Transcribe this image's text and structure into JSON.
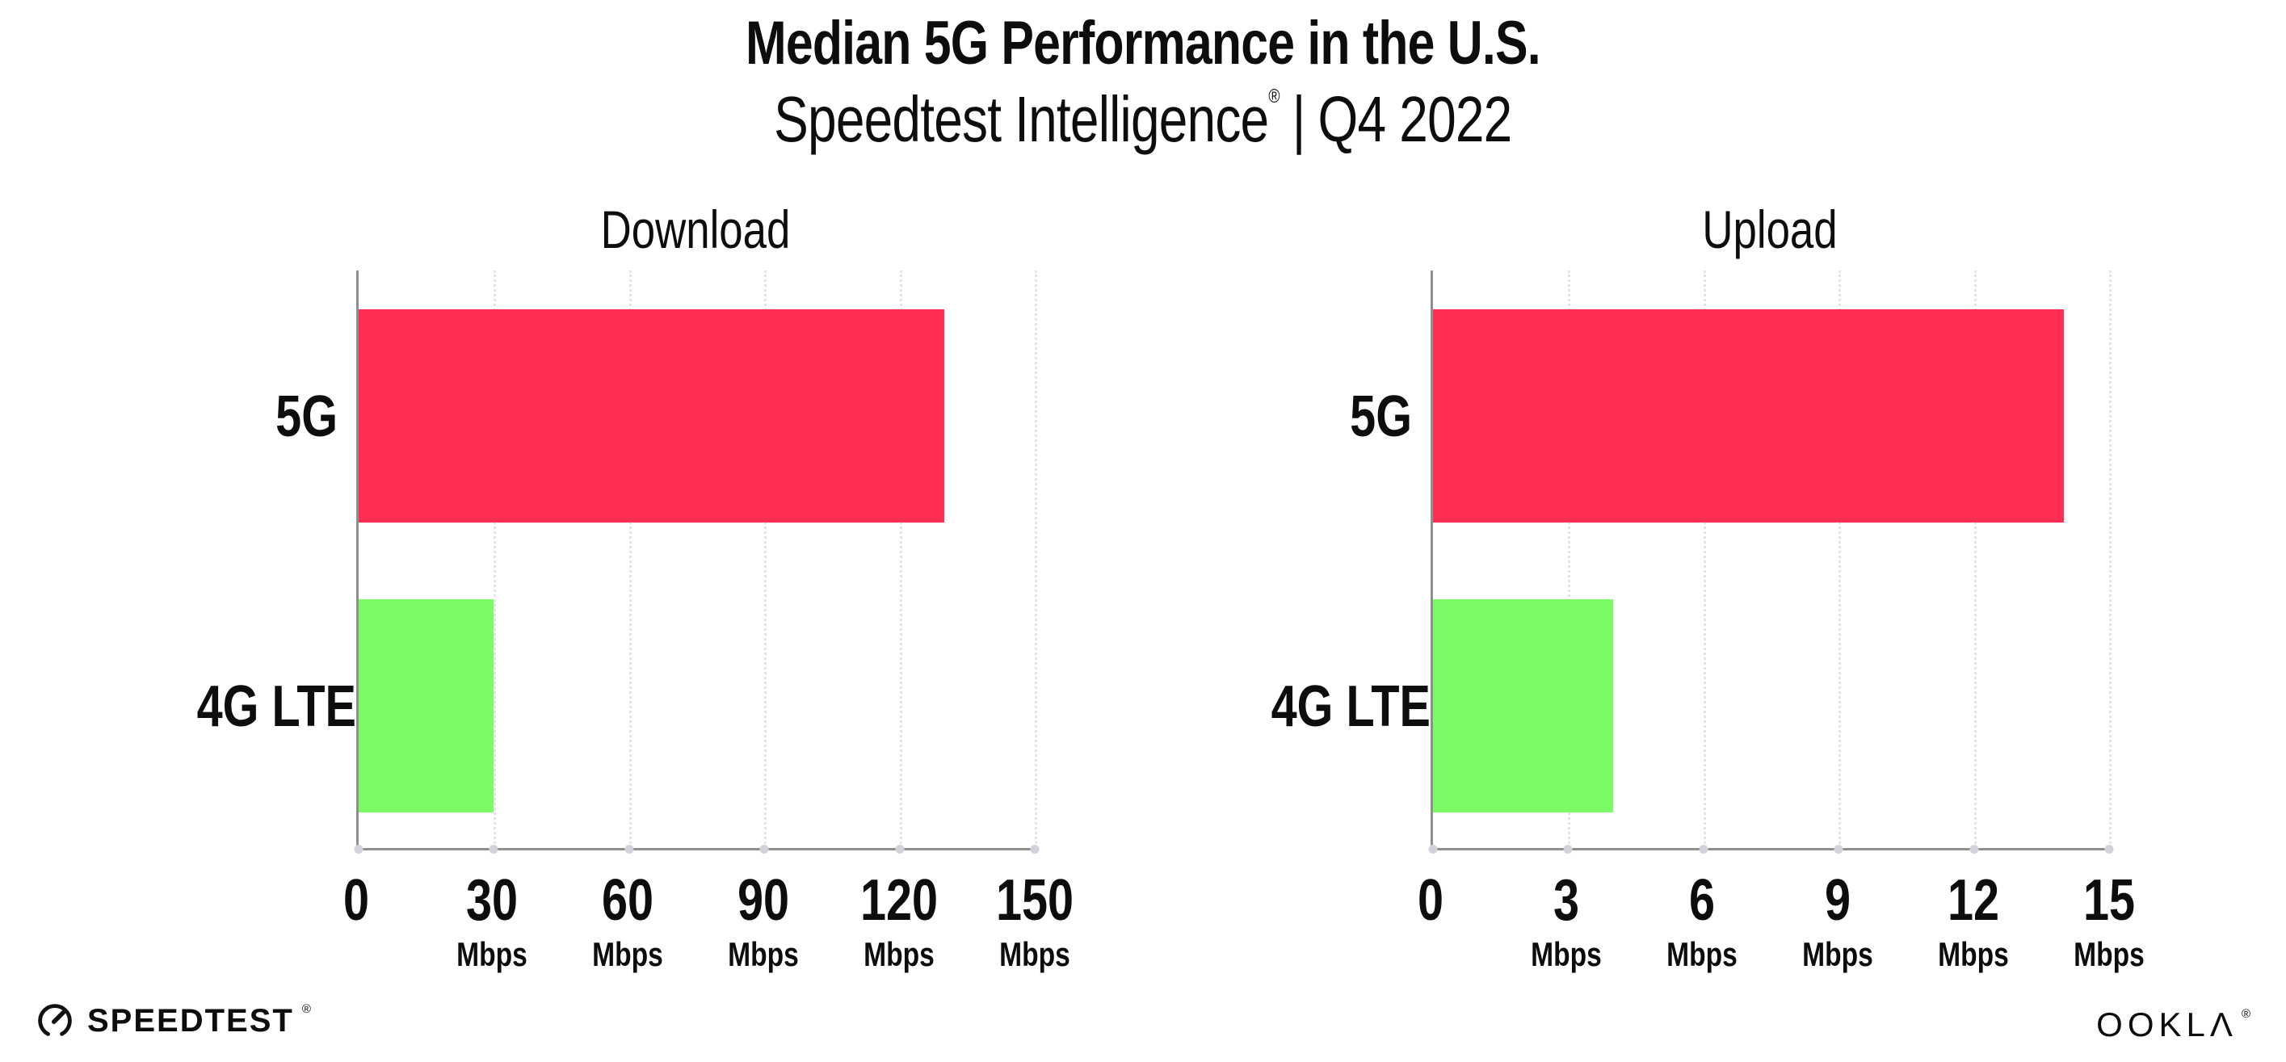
{
  "header": {
    "title": "Median 5G Performance in the U.S.",
    "subtitle_brand": "Speedtest Intelligence",
    "subtitle_reg": "®",
    "subtitle_separator": "|",
    "subtitle_period": "Q4 2022"
  },
  "chart_data": [
    {
      "type": "bar",
      "orientation": "horizontal",
      "title": "Download",
      "categories": [
        "5G",
        "4G LTE"
      ],
      "values": [
        130,
        30
      ],
      "unit": "Mbps",
      "xlim": [
        0,
        150
      ],
      "xticks": [
        0,
        30,
        60,
        90,
        120,
        150
      ],
      "ticks": [
        {
          "label": "0",
          "unit": ""
        },
        {
          "label": "30",
          "unit": "Mbps"
        },
        {
          "label": "60",
          "unit": "Mbps"
        },
        {
          "label": "90",
          "unit": "Mbps"
        },
        {
          "label": "120",
          "unit": "Mbps"
        },
        {
          "label": "150",
          "unit": "Mbps"
        }
      ],
      "bar_colors": [
        "#ff2e54",
        "#7dfb64"
      ],
      "grid": "dotted vertical gridlines",
      "legend": "none"
    },
    {
      "type": "bar",
      "orientation": "horizontal",
      "title": "Upload",
      "categories": [
        "5G",
        "4G LTE"
      ],
      "values": [
        14,
        4
      ],
      "unit": "Mbps",
      "xlim": [
        0,
        15
      ],
      "xticks": [
        0,
        3,
        6,
        9,
        12,
        15
      ],
      "ticks": [
        {
          "label": "0",
          "unit": ""
        },
        {
          "label": "3",
          "unit": "Mbps"
        },
        {
          "label": "6",
          "unit": "Mbps"
        },
        {
          "label": "9",
          "unit": "Mbps"
        },
        {
          "label": "12",
          "unit": "Mbps"
        },
        {
          "label": "15",
          "unit": "Mbps"
        }
      ],
      "bar_colors": [
        "#ff2e54",
        "#7dfb64"
      ],
      "grid": "dotted vertical gridlines",
      "legend": "none"
    }
  ],
  "colors": {
    "bar_5g": "#ff2e54",
    "bar_4g_lte": "#7dfb64",
    "axis_line": "#8f8f8f",
    "gridline": "#e3e3ea",
    "text": "#0d0d0d",
    "background": "#ffffff"
  },
  "footer": {
    "speedtest_label": "SPEEDTEST",
    "speedtest_reg": "®",
    "ookla_label": "OOKLΛ",
    "ookla_reg": "®"
  }
}
